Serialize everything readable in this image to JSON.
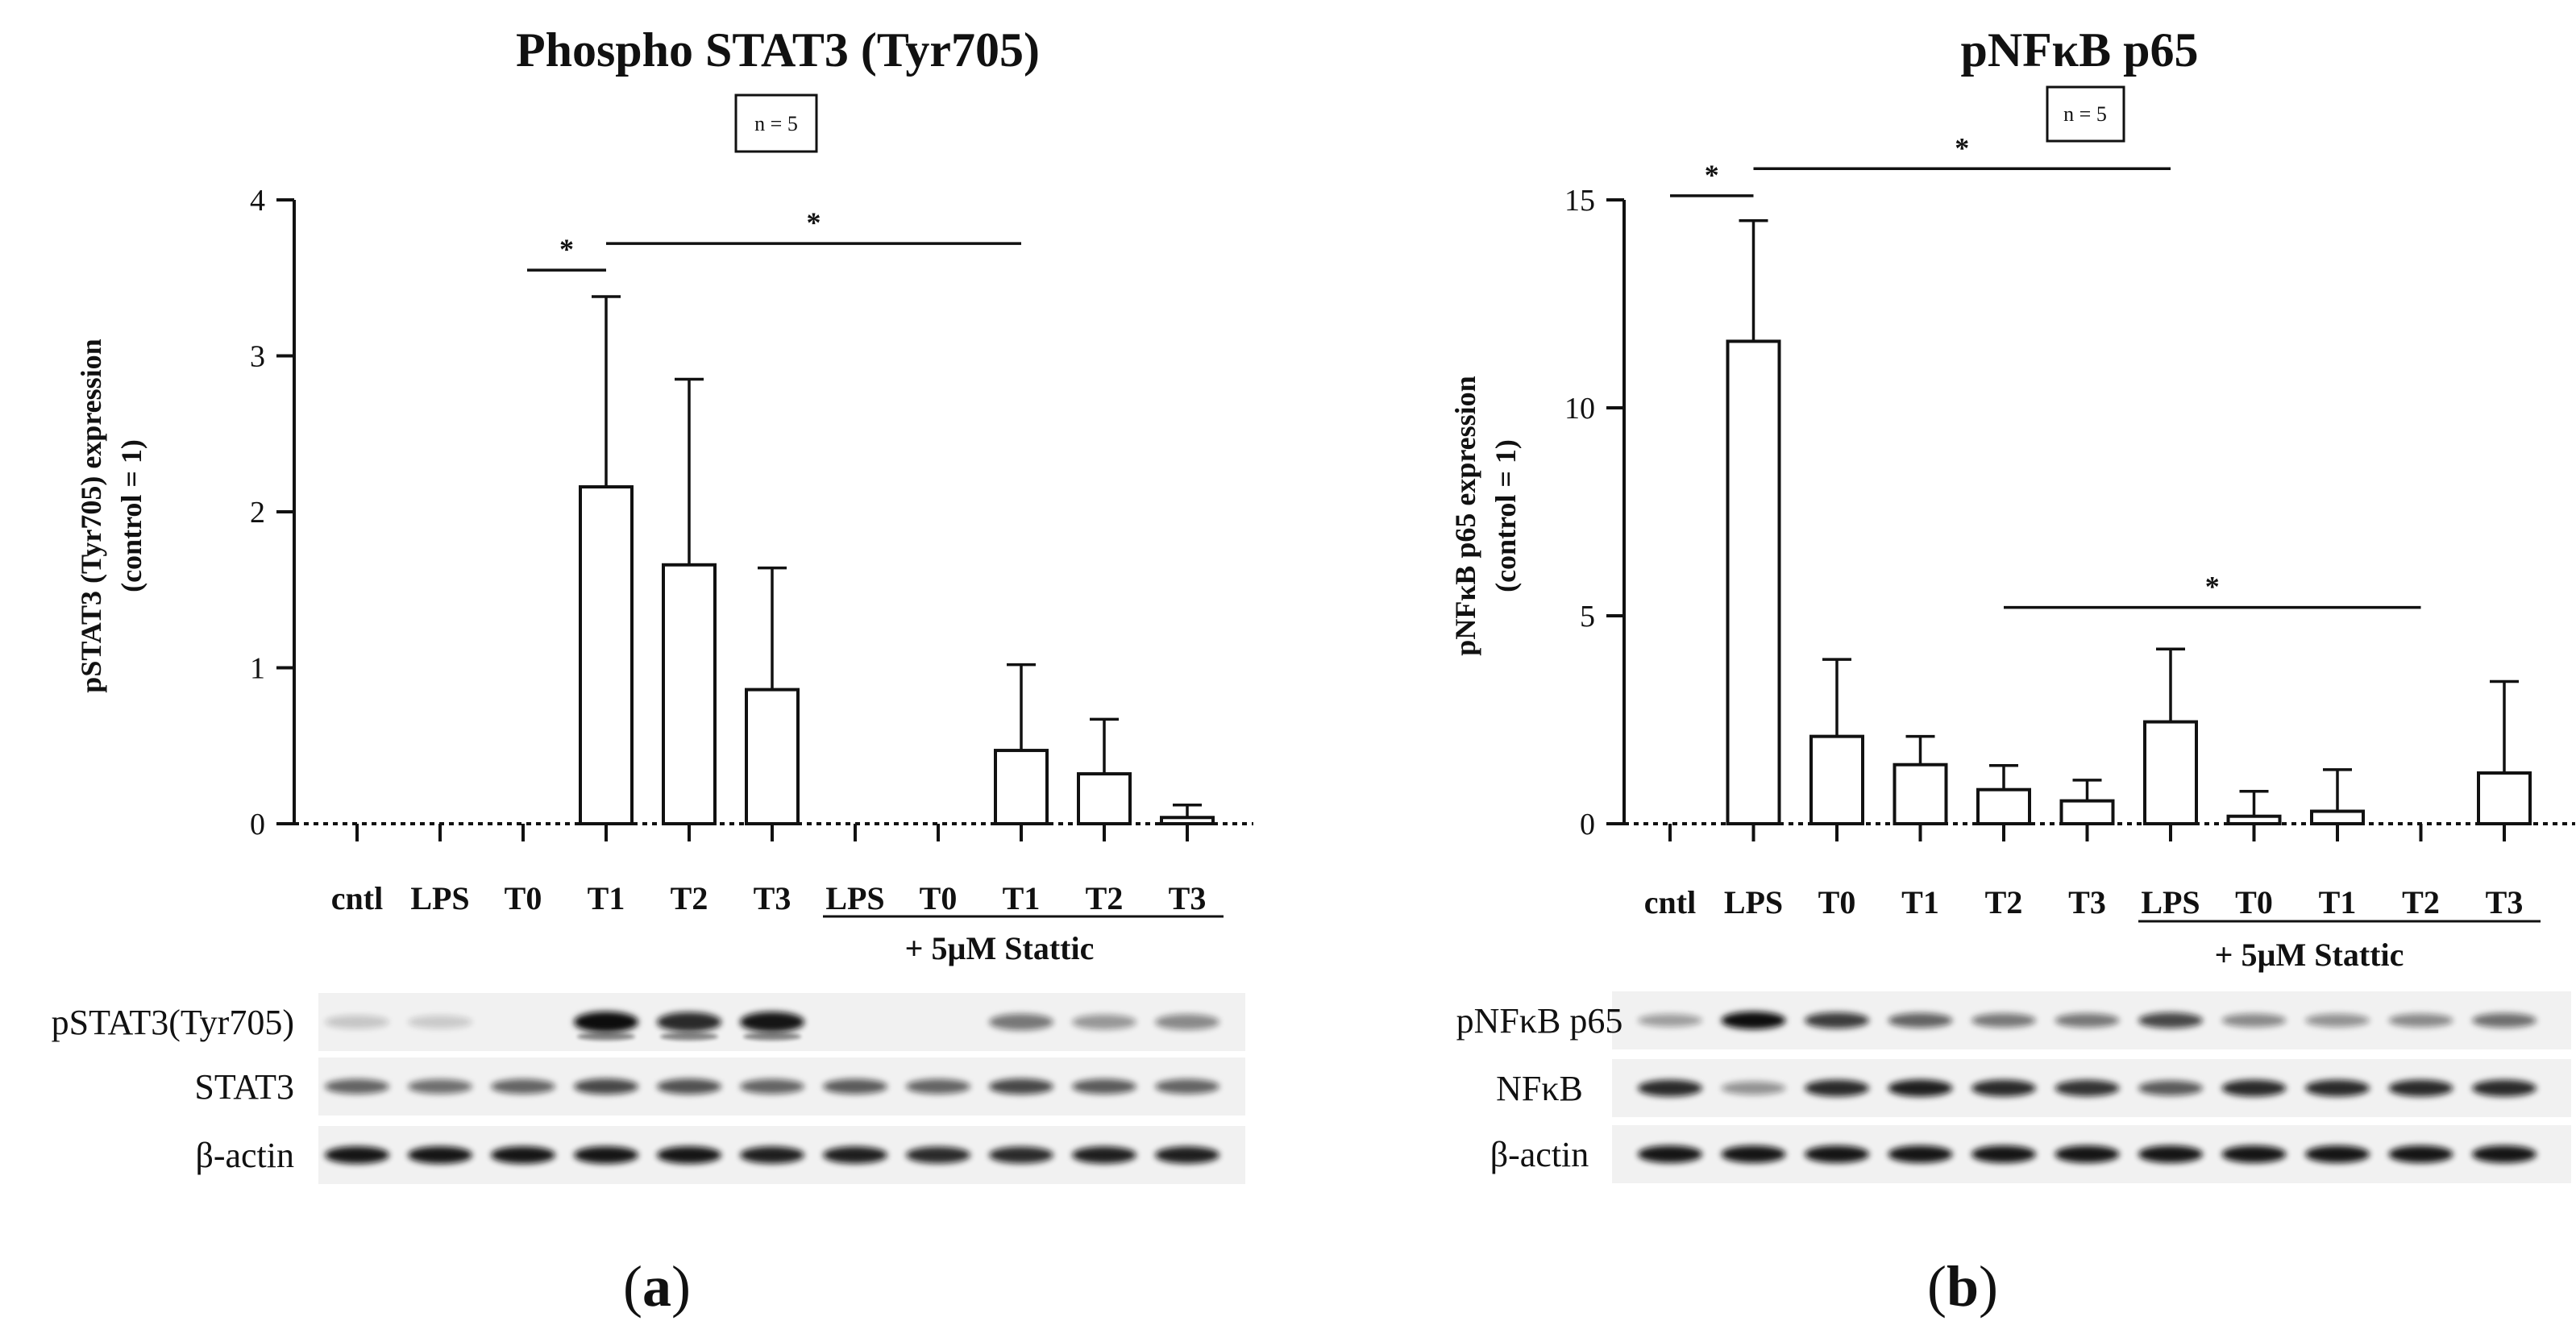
{
  "chart_data": [
    {
      "panel": "a",
      "type": "bar",
      "title": "Phospho STAT3 (Tyr705)",
      "n_label": "n = 5",
      "ylabel_line1": "pSTAT3 (Tyr705) expression",
      "ylabel_line2": "(control = 1)",
      "ylim": [
        0,
        4
      ],
      "yticks": [
        "0",
        "1",
        "2",
        "3",
        "4"
      ],
      "categories": [
        "cntl",
        "LPS",
        "T0",
        "T1",
        "T2",
        "T3",
        "LPS",
        "T0",
        "T1",
        "T2",
        "T3"
      ],
      "values": [
        0,
        0,
        0,
        2.16,
        1.66,
        0.86,
        0,
        0,
        0.47,
        0.32,
        0.04
      ],
      "errors": [
        0,
        0,
        0,
        1.22,
        1.19,
        0.78,
        0,
        0,
        0.55,
        0.35,
        0.08
      ],
      "treatment_label": "+ 5µM Stattic",
      "significance": [
        {
          "from": 2,
          "to": 3,
          "label": "*",
          "y": 3.55
        },
        {
          "from": 3,
          "to": 8,
          "label": "*",
          "y": 3.72
        }
      ],
      "blot_labels": [
        "pSTAT3(Tyr705)",
        "STAT3",
        "β-actin"
      ],
      "panel_label": "a"
    },
    {
      "panel": "b",
      "type": "bar",
      "title": "pNFκB p65",
      "n_label": "n = 5",
      "ylabel_line1": "pNFκB p65 expression",
      "ylabel_line2": "(control = 1)",
      "ylim": [
        0,
        15
      ],
      "yticks": [
        "0",
        "5",
        "10",
        "15"
      ],
      "categories": [
        "cntl",
        "LPS",
        "T0",
        "T1",
        "T2",
        "T3",
        "LPS",
        "T0",
        "T1",
        "T2",
        "T3"
      ],
      "values": [
        0,
        11.6,
        2.1,
        1.42,
        0.82,
        0.55,
        2.45,
        0.18,
        0.3,
        0,
        1.22
      ],
      "errors": [
        0,
        2.9,
        1.85,
        0.68,
        0.58,
        0.5,
        1.75,
        0.6,
        1.0,
        0,
        2.2
      ],
      "treatment_label": "+ 5µM Stattic",
      "significance": [
        {
          "from": 0,
          "to": 1,
          "label": "*",
          "y": 15.1
        },
        {
          "from": 1,
          "to": 6,
          "label": "*",
          "y": 15.75
        },
        {
          "from": 4,
          "to": 9,
          "label": "*",
          "y": 5.2
        }
      ],
      "blot_labels": [
        "pNFκB p65",
        "NFκB",
        "β-actin"
      ],
      "panel_label": "b"
    }
  ]
}
